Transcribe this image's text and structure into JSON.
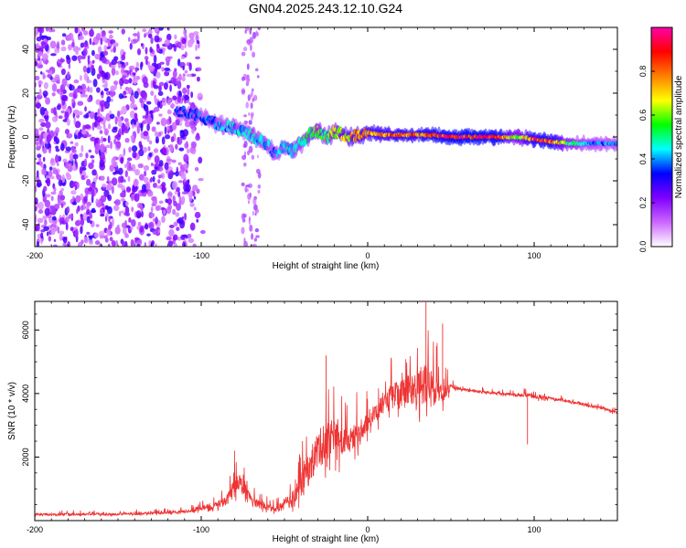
{
  "title": "GN04.2025.243.12.10.G24",
  "chart_data": [
    {
      "type": "heatmap",
      "title": "GN04.2025.243.12.10.G24",
      "xlabel": "Height of straight line (km)",
      "ylabel": "Frequency (Hz)",
      "xlim": [
        -200,
        150
      ],
      "ylim": [
        -50,
        50
      ],
      "x_ticks": [
        -200,
        -100,
        0,
        100
      ],
      "y_ticks": [
        -40,
        -20,
        0,
        20,
        40
      ],
      "colorbar": {
        "label": "Normalized spectral amplitude",
        "range": [
          0,
          1
        ],
        "ticks": [
          0.0,
          0.2,
          0.4,
          0.6,
          0.8
        ],
        "colors": [
          "#ffffff",
          "#cc66ff",
          "#7f00ff",
          "#0000ff",
          "#00ffff",
          "#00ff00",
          "#ffff00",
          "#ff8000",
          "#ff0000",
          "#ff00aa"
        ]
      },
      "ridge": {
        "x": [
          -115,
          -100,
          -90,
          -80,
          -70,
          -60,
          -55,
          -50,
          -45,
          -40,
          -35,
          -30,
          -25,
          -20,
          -10,
          0,
          10,
          20,
          30,
          40,
          50,
          60,
          70,
          80,
          90,
          100,
          110,
          120,
          130,
          140,
          150
        ],
        "frequency": [
          12,
          9,
          6,
          4,
          1,
          -4,
          -8,
          -4,
          -6,
          -3,
          1,
          3,
          0,
          2,
          0,
          2,
          1,
          1,
          1,
          1,
          0,
          0,
          0,
          0,
          0,
          -1,
          -2,
          -3,
          -3,
          -3,
          -3
        ],
        "amplitude": [
          0.35,
          0.4,
          0.4,
          0.45,
          0.45,
          0.45,
          0.4,
          0.45,
          0.45,
          0.5,
          0.55,
          0.6,
          0.6,
          0.65,
          0.75,
          0.8,
          0.8,
          0.85,
          0.85,
          0.9,
          0.95,
          0.95,
          0.95,
          0.9,
          0.6,
          0.9,
          0.9,
          0.6,
          0.45,
          0.4,
          0.4
        ]
      },
      "noise_region_x": [
        -200,
        -110
      ],
      "extra_noise_band_x": [
        -75,
        -65
      ]
    },
    {
      "type": "line",
      "xlabel": "Height of straight line (km)",
      "ylabel": "SNR (10 * v/v)",
      "xlim": [
        -200,
        150
      ],
      "ylim": [
        0,
        6900
      ],
      "x_ticks": [
        -200,
        -100,
        0,
        100
      ],
      "y_ticks": [
        2000,
        4000,
        6000
      ],
      "series": [
        {
          "name": "SNR",
          "color": "#ee3333",
          "x": [
            -200,
            -150,
            -120,
            -105,
            -95,
            -85,
            -78,
            -72,
            -65,
            -55,
            -45,
            -38,
            -30,
            -22,
            -15,
            -8,
            0,
            8,
            15,
            22,
            30,
            35,
            40,
            45,
            50,
            60,
            70,
            80,
            90,
            95,
            100,
            110,
            120,
            130,
            140,
            150
          ],
          "mean": [
            200,
            200,
            250,
            300,
            450,
            600,
            1300,
            800,
            500,
            350,
            700,
            1400,
            2200,
            2700,
            2400,
            2700,
            3100,
            3600,
            3900,
            4000,
            4200,
            4300,
            4200,
            4100,
            4200,
            4100,
            4050,
            4000,
            3950,
            3950,
            3900,
            3850,
            3750,
            3650,
            3550,
            3400
          ],
          "noise": [
            80,
            80,
            90,
            120,
            200,
            350,
            700,
            450,
            250,
            200,
            600,
            1200,
            1400,
            1300,
            1000,
            900,
            700,
            700,
            900,
            1100,
            1300,
            1400,
            1200,
            900,
            150,
            100,
            100,
            100,
            100,
            150,
            150,
            100,
            100,
            100,
            100,
            100
          ],
          "peaks": [
            {
              "x": 35,
              "y": 6900
            },
            {
              "x": 45,
              "y": 6200
            },
            {
              "x": -25,
              "y": 5200
            },
            {
              "x": -80,
              "y": 2200
            },
            {
              "x": 96,
              "y": 2400
            }
          ]
        }
      ]
    }
  ]
}
